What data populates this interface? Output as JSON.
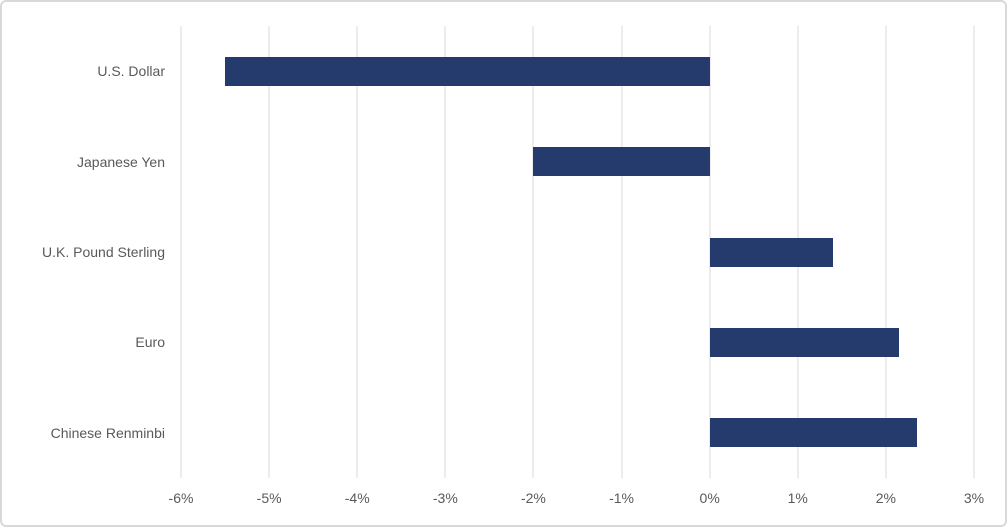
{
  "chart": {
    "title": "",
    "colors": {
      "bar": "#253b6d",
      "gridline": "#d9d9d9",
      "text": "#595959",
      "border": "#d9d9d9",
      "background": "#ffffff"
    }
  },
  "chart_data": {
    "type": "bar",
    "orientation": "horizontal",
    "title": "",
    "xlabel": "",
    "ylabel": "",
    "categories": [
      "U.S. Dollar",
      "Japanese Yen",
      "U.K. Pound Sterling",
      "Euro",
      "Chinese Renminbi"
    ],
    "values": [
      -5.5,
      -2.0,
      1.4,
      2.15,
      2.35
    ],
    "xlim": [
      -6,
      3
    ],
    "x_tick_labels": [
      "-6%",
      "-5%",
      "-4%",
      "-3%",
      "-2%",
      "-1%",
      "0%",
      "1%",
      "2%",
      "3%"
    ],
    "grid": true,
    "legend": false,
    "axis_lines": false
  }
}
